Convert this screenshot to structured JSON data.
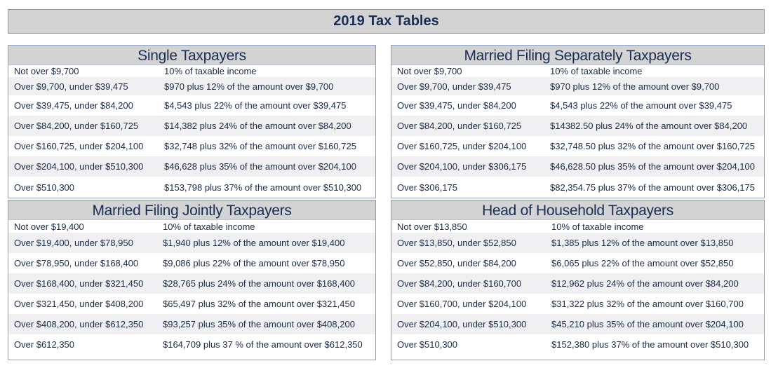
{
  "title": "2019 Tax Tables",
  "tables": [
    {
      "heading": "Single Taxpayers",
      "rows": [
        [
          "Not over $9,700",
          "10% of taxable income"
        ],
        [
          "Over $9,700, under $39,475",
          "$970 plus 12% of the amount over $9,700"
        ],
        [
          "Over $39,475, under $84,200",
          "$4,543 plus 22% of the amount over $39,475"
        ],
        [
          "Over $84,200, under $160,725",
          "$14,382 plus 24% of the amount over $84,200"
        ],
        [
          "Over $160,725, under $204,100",
          "$32,748 plus 32% of the amount over $160,725"
        ],
        [
          "Over $204,100, under $510,300",
          "$46,628 plus 35% of the amount over $204,100"
        ],
        [
          "Over $510,300",
          "$153,798 plus 37% of the amount over $510,300"
        ]
      ]
    },
    {
      "heading": "Married Filing Separately Taxpayers",
      "rows": [
        [
          "Not over $9,700",
          "10% of taxable income"
        ],
        [
          "Over $9,700, under $39,475",
          "$970 plus 12% of the amount over $9,700"
        ],
        [
          "Over $39,475, under $84,200",
          "$4,543 plus 22% of the amount over $39,475"
        ],
        [
          "Over $84,200, under $160,725",
          "$14382.50 plus 24% of the amount over $84,200"
        ],
        [
          "Over $160,725, under $204,100",
          "$32,748.50 plus 32% of the amount over $160,725"
        ],
        [
          "Over $204,100, under $306,175",
          "$46,628.50 plus 35% of the amount over $204,100"
        ],
        [
          "Over $306,175",
          "$82,354.75 plus 37% of the amount over $306,175"
        ]
      ]
    },
    {
      "heading": "Married Filing Jointly Taxpayers",
      "rows": [
        [
          "Not over $19,400",
          "10% of taxable income"
        ],
        [
          "Over $19,400, under $78,950",
          "$1,940 plus 12% of the amount over $19,400"
        ],
        [
          "Over $78,950, under $168,400",
          "$9,086 plus 22% of the amount over $78,950"
        ],
        [
          "Over $168,400, under $321,450",
          "$28,765 plus 24% of the amount over $168,400"
        ],
        [
          "Over $321,450, under $408,200",
          "$65,497 plus 32% of the amount over $321,450"
        ],
        [
          "Over $408,200, under $612,350",
          "$93,257 plus 35% of the amount over $408,200"
        ],
        [
          "Over $612,350",
          "$164,709 plus 37 % of the amount over $612,350"
        ]
      ]
    },
    {
      "heading": "Head of Household Taxpayers",
      "rows": [
        [
          "Not over $13,850",
          "10% of taxable income"
        ],
        [
          "Over $13,850, under $52,850",
          "$1,385 plus 12% of the amount over $13,850"
        ],
        [
          "Over $52,850, under $84,200",
          "$6,065 plus 22% of the amount over $52,850"
        ],
        [
          "Over $84,200, under $160,700",
          "$12,962 plus 24% of the amount over $84,200"
        ],
        [
          "Over $160,700, under $204,100",
          "$31,322 plus 32% of the amount over $160,700"
        ],
        [
          "Over $204,100, under $510,300",
          "$45,210 plus 35% of the amount over $204,100"
        ],
        [
          "Over $510,300",
          "$152,380 plus 37% of the amount over $510,300"
        ]
      ]
    }
  ]
}
